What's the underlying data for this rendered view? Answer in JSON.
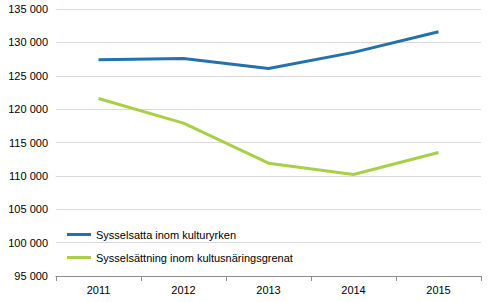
{
  "chart_data": {
    "type": "line",
    "categories": [
      "2011",
      "2012",
      "2013",
      "2014",
      "2015"
    ],
    "series": [
      {
        "name": "Sysselsatta inom kulturyrken",
        "color": "#2372ad",
        "values": [
          127400,
          127600,
          126100,
          128500,
          131600
        ]
      },
      {
        "name": "Sysselsättning inom kultusnäringsgrenat",
        "color": "#a9cf46",
        "values": [
          121600,
          117900,
          111900,
          110200,
          113500
        ]
      }
    ],
    "ylim": [
      95000,
      135000
    ],
    "yticks": [
      {
        "value": 95000,
        "label": "95 000"
      },
      {
        "value": 100000,
        "label": "100 000"
      },
      {
        "value": 105000,
        "label": "105 000"
      },
      {
        "value": 110000,
        "label": "110 000"
      },
      {
        "value": 115000,
        "label": "115 000"
      },
      {
        "value": 120000,
        "label": "120 000"
      },
      {
        "value": 125000,
        "label": "125 000"
      },
      {
        "value": 130000,
        "label": "130 000"
      },
      {
        "value": 135000,
        "label": "135 000"
      }
    ],
    "grid": true,
    "legend": "lower left"
  }
}
